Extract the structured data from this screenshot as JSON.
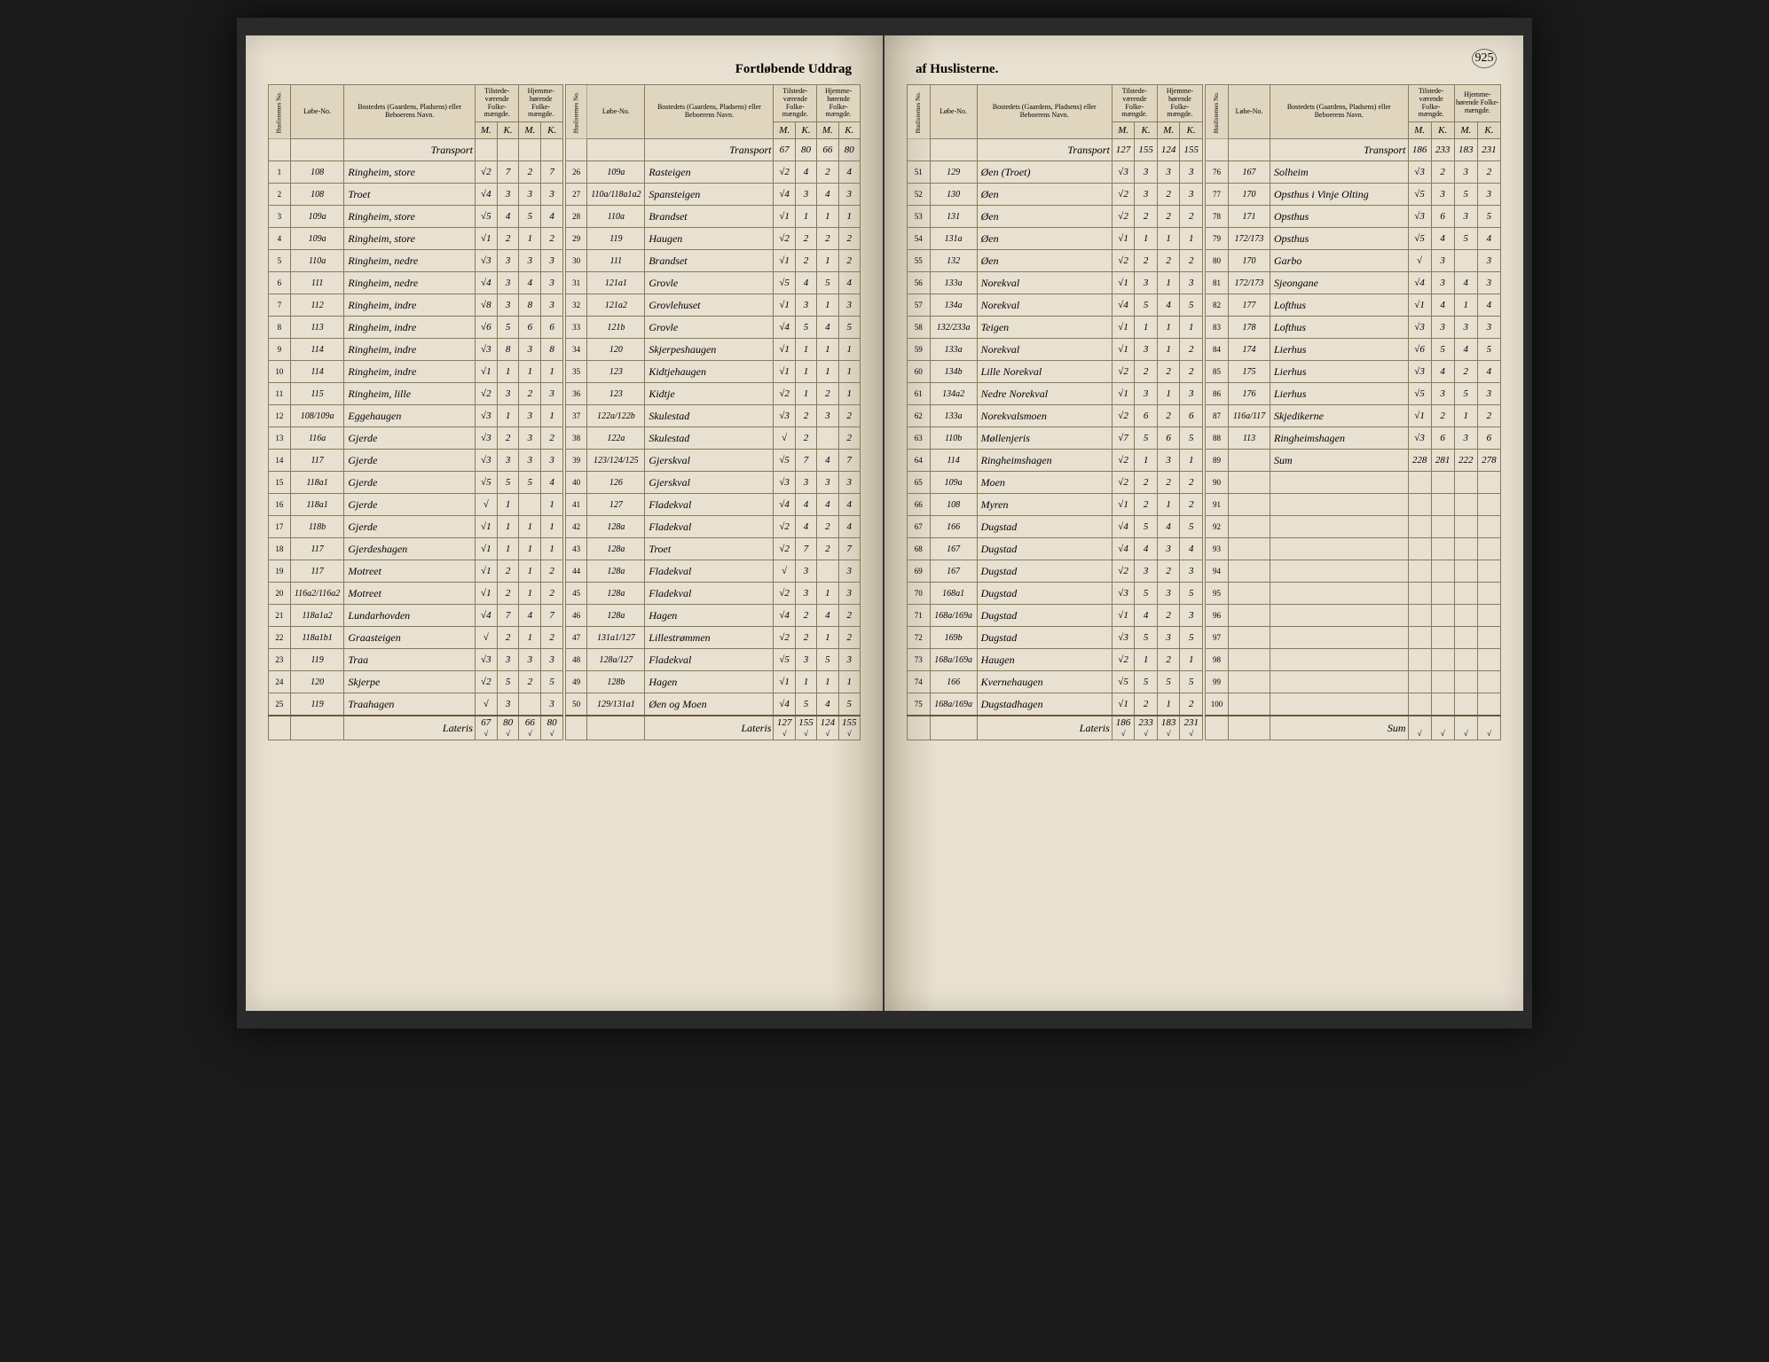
{
  "pageNumber": "925",
  "titleLeft": "Fortløbende Uddrag",
  "titleRight": "af Huslisterne.",
  "headers": {
    "huslisternes": "Huslisternes No.",
    "lobe": "Løbe-No.",
    "bosted": "Bostedets (Gaardens, Pladsens) eller Beboerens Navn.",
    "tilstede": "Tilstede-værende Folke-mængde.",
    "hjemme": "Hjemme-hørende Folke-mængde.",
    "m": "M.",
    "k": "K."
  },
  "transport": "Transport",
  "lateris": "Lateris",
  "sum": "Sum",
  "leftPage": {
    "col1": {
      "transport": [
        "",
        "",
        "",
        ""
      ],
      "rows": [
        {
          "n": "1",
          "lobe": "108",
          "name": "Ringheim, store",
          "m1": "√2",
          "k1": "7",
          "m2": "2",
          "k2": "7"
        },
        {
          "n": "2",
          "lobe": "108",
          "name": "Troet",
          "m1": "√4",
          "k1": "3",
          "m2": "3",
          "k2": "3"
        },
        {
          "n": "3",
          "lobe": "109a",
          "name": "Ringheim, store",
          "m1": "√5",
          "k1": "4",
          "m2": "5",
          "k2": "4"
        },
        {
          "n": "4",
          "lobe": "109a",
          "name": "Ringheim, store",
          "m1": "√1",
          "k1": "2",
          "m2": "1",
          "k2": "2"
        },
        {
          "n": "5",
          "lobe": "110a",
          "name": "Ringheim, nedre",
          "m1": "√3",
          "k1": "3",
          "m2": "3",
          "k2": "3"
        },
        {
          "n": "6",
          "lobe": "111",
          "name": "Ringheim, nedre",
          "m1": "√4",
          "k1": "3",
          "m2": "4",
          "k2": "3"
        },
        {
          "n": "7",
          "lobe": "112",
          "name": "Ringheim, indre",
          "m1": "√8",
          "k1": "3",
          "m2": "8",
          "k2": "3"
        },
        {
          "n": "8",
          "lobe": "113",
          "name": "Ringheim, indre",
          "m1": "√6",
          "k1": "5",
          "m2": "6",
          "k2": "6"
        },
        {
          "n": "9",
          "lobe": "114",
          "name": "Ringheim, indre",
          "m1": "√3",
          "k1": "8",
          "m2": "3",
          "k2": "8"
        },
        {
          "n": "10",
          "lobe": "114",
          "name": "Ringheim, indre",
          "m1": "√1",
          "k1": "1",
          "m2": "1",
          "k2": "1"
        },
        {
          "n": "11",
          "lobe": "115",
          "name": "Ringheim, lille",
          "m1": "√2",
          "k1": "3",
          "m2": "2",
          "k2": "3"
        },
        {
          "n": "12",
          "lobe": "108/109a",
          "name": "Eggehaugen",
          "m1": "√3",
          "k1": "1",
          "m2": "3",
          "k2": "1"
        },
        {
          "n": "13",
          "lobe": "116a",
          "name": "Gjerde",
          "m1": "√3",
          "k1": "2",
          "m2": "3",
          "k2": "2"
        },
        {
          "n": "14",
          "lobe": "117",
          "name": "Gjerde",
          "m1": "√3",
          "k1": "3",
          "m2": "3",
          "k2": "3"
        },
        {
          "n": "15",
          "lobe": "118a1",
          "name": "Gjerde",
          "m1": "√5",
          "k1": "5",
          "m2": "5",
          "k2": "4"
        },
        {
          "n": "16",
          "lobe": "118a1",
          "name": "Gjerde",
          "m1": "√",
          "k1": "1",
          "m2": "",
          "k2": "1"
        },
        {
          "n": "17",
          "lobe": "118b",
          "name": "Gjerde",
          "m1": "√1",
          "k1": "1",
          "m2": "1",
          "k2": "1"
        },
        {
          "n": "18",
          "lobe": "117",
          "name": "Gjerdeshagen",
          "m1": "√1",
          "k1": "1",
          "m2": "1",
          "k2": "1"
        },
        {
          "n": "19",
          "lobe": "117",
          "name": "Motreet",
          "m1": "√1",
          "k1": "2",
          "m2": "1",
          "k2": "2"
        },
        {
          "n": "20",
          "lobe": "116a2/116a2",
          "name": "Motreet",
          "m1": "√1",
          "k1": "2",
          "m2": "1",
          "k2": "2"
        },
        {
          "n": "21",
          "lobe": "118a1a2",
          "name": "Lundarhovden",
          "m1": "√4",
          "k1": "7",
          "m2": "4",
          "k2": "7"
        },
        {
          "n": "22",
          "lobe": "118a1b1",
          "name": "Graasteigen",
          "m1": "√",
          "k1": "2",
          "m2": "1",
          "k2": "2"
        },
        {
          "n": "23",
          "lobe": "119",
          "name": "Traa",
          "m1": "√3",
          "k1": "3",
          "m2": "3",
          "k2": "3"
        },
        {
          "n": "24",
          "lobe": "120",
          "name": "Skjerpe",
          "m1": "√2",
          "k1": "5",
          "m2": "2",
          "k2": "5"
        },
        {
          "n": "25",
          "lobe": "119",
          "name": "Traahagen",
          "m1": "√",
          "k1": "3",
          "m2": "",
          "k2": "3"
        }
      ],
      "lateris": [
        "67",
        "80",
        "66",
        "80"
      ]
    },
    "col2": {
      "transport": [
        "67",
        "80",
        "66",
        "80"
      ],
      "rows": [
        {
          "n": "26",
          "lobe": "109a",
          "name": "Rasteigen",
          "m1": "√2",
          "k1": "4",
          "m2": "2",
          "k2": "4"
        },
        {
          "n": "27",
          "lobe": "110a/118a1a2",
          "name": "Spansteigen",
          "m1": "√4",
          "k1": "3",
          "m2": "4",
          "k2": "3"
        },
        {
          "n": "28",
          "lobe": "110a",
          "name": "Brandset",
          "m1": "√1",
          "k1": "1",
          "m2": "1",
          "k2": "1"
        },
        {
          "n": "29",
          "lobe": "119",
          "name": "Haugen",
          "m1": "√2",
          "k1": "2",
          "m2": "2",
          "k2": "2"
        },
        {
          "n": "30",
          "lobe": "111",
          "name": "Brandset",
          "m1": "√1",
          "k1": "2",
          "m2": "1",
          "k2": "2"
        },
        {
          "n": "31",
          "lobe": "121a1",
          "name": "Grovle",
          "m1": "√5",
          "k1": "4",
          "m2": "5",
          "k2": "4"
        },
        {
          "n": "32",
          "lobe": "121a2",
          "name": "Grovlehuset",
          "m1": "√1",
          "k1": "3",
          "m2": "1",
          "k2": "3"
        },
        {
          "n": "33",
          "lobe": "121b",
          "name": "Grovle",
          "m1": "√4",
          "k1": "5",
          "m2": "4",
          "k2": "5"
        },
        {
          "n": "34",
          "lobe": "120",
          "name": "Skjerpeshaugen",
          "m1": "√1",
          "k1": "1",
          "m2": "1",
          "k2": "1"
        },
        {
          "n": "35",
          "lobe": "123",
          "name": "Kidtjehaugen",
          "m1": "√1",
          "k1": "1",
          "m2": "1",
          "k2": "1"
        },
        {
          "n": "36",
          "lobe": "123",
          "name": "Kidtje",
          "m1": "√2",
          "k1": "1",
          "m2": "2",
          "k2": "1"
        },
        {
          "n": "37",
          "lobe": "122a/122b",
          "name": "Skulestad",
          "m1": "√3",
          "k1": "2",
          "m2": "3",
          "k2": "2"
        },
        {
          "n": "38",
          "lobe": "122a",
          "name": "Skulestad",
          "m1": "√",
          "k1": "2",
          "m2": "",
          "k2": "2"
        },
        {
          "n": "39",
          "lobe": "123/124/125",
          "name": "Gjerskval",
          "m1": "√5",
          "k1": "7",
          "m2": "4",
          "k2": "7"
        },
        {
          "n": "40",
          "lobe": "126",
          "name": "Gjerskval",
          "m1": "√3",
          "k1": "3",
          "m2": "3",
          "k2": "3"
        },
        {
          "n": "41",
          "lobe": "127",
          "name": "Fladekval",
          "m1": "√4",
          "k1": "4",
          "m2": "4",
          "k2": "4"
        },
        {
          "n": "42",
          "lobe": "128a",
          "name": "Fladekval",
          "m1": "√2",
          "k1": "4",
          "m2": "2",
          "k2": "4"
        },
        {
          "n": "43",
          "lobe": "128a",
          "name": "Troet",
          "m1": "√2",
          "k1": "7",
          "m2": "2",
          "k2": "7"
        },
        {
          "n": "44",
          "lobe": "128a",
          "name": "Fladekval",
          "m1": "√",
          "k1": "3",
          "m2": "",
          "k2": "3"
        },
        {
          "n": "45",
          "lobe": "128a",
          "name": "Fladekval",
          "m1": "√2",
          "k1": "3",
          "m2": "1",
          "k2": "3"
        },
        {
          "n": "46",
          "lobe": "128a",
          "name": "Hagen",
          "m1": "√4",
          "k1": "2",
          "m2": "4",
          "k2": "2"
        },
        {
          "n": "47",
          "lobe": "131a1/127",
          "name": "Lillestrømmen",
          "m1": "√2",
          "k1": "2",
          "m2": "1",
          "k2": "2"
        },
        {
          "n": "48",
          "lobe": "128a/127",
          "name": "Fladekval",
          "m1": "√5",
          "k1": "3",
          "m2": "5",
          "k2": "3"
        },
        {
          "n": "49",
          "lobe": "128b",
          "name": "Hagen",
          "m1": "√1",
          "k1": "1",
          "m2": "1",
          "k2": "1"
        },
        {
          "n": "50",
          "lobe": "129/131a1",
          "name": "Øen og Moen",
          "m1": "√4",
          "k1": "5",
          "m2": "4",
          "k2": "5"
        }
      ],
      "lateris": [
        "127",
        "155",
        "124",
        "155"
      ]
    }
  },
  "rightPage": {
    "col1": {
      "transport": [
        "127",
        "155",
        "124",
        "155"
      ],
      "rows": [
        {
          "n": "51",
          "lobe": "129",
          "name": "Øen (Troet)",
          "m1": "√3",
          "k1": "3",
          "m2": "3",
          "k2": "3"
        },
        {
          "n": "52",
          "lobe": "130",
          "name": "Øen",
          "m1": "√2",
          "k1": "3",
          "m2": "2",
          "k2": "3"
        },
        {
          "n": "53",
          "lobe": "131",
          "name": "Øen",
          "m1": "√2",
          "k1": "2",
          "m2": "2",
          "k2": "2"
        },
        {
          "n": "54",
          "lobe": "131a",
          "name": "Øen",
          "m1": "√1",
          "k1": "1",
          "m2": "1",
          "k2": "1"
        },
        {
          "n": "55",
          "lobe": "132",
          "name": "Øen",
          "m1": "√2",
          "k1": "2",
          "m2": "2",
          "k2": "2"
        },
        {
          "n": "56",
          "lobe": "133a",
          "name": "Norekval",
          "m1": "√1",
          "k1": "3",
          "m2": "1",
          "k2": "3"
        },
        {
          "n": "57",
          "lobe": "134a",
          "name": "Norekval",
          "m1": "√4",
          "k1": "5",
          "m2": "4",
          "k2": "5"
        },
        {
          "n": "58",
          "lobe": "132/233a",
          "name": "Teigen",
          "m1": "√1",
          "k1": "1",
          "m2": "1",
          "k2": "1"
        },
        {
          "n": "59",
          "lobe": "133a",
          "name": "Norekval",
          "m1": "√1",
          "k1": "3",
          "m2": "1",
          "k2": "2"
        },
        {
          "n": "60",
          "lobe": "134b",
          "name": "Lille Norekval",
          "m1": "√2",
          "k1": "2",
          "m2": "2",
          "k2": "2"
        },
        {
          "n": "61",
          "lobe": "134a2",
          "name": "Nedre Norekval",
          "m1": "√1",
          "k1": "3",
          "m2": "1",
          "k2": "3"
        },
        {
          "n": "62",
          "lobe": "133a",
          "name": "Norekvalsmoen",
          "m1": "√2",
          "k1": "6",
          "m2": "2",
          "k2": "6"
        },
        {
          "n": "63",
          "lobe": "110b",
          "name": "Møllenjeris",
          "m1": "√7",
          "k1": "5",
          "m2": "6",
          "k2": "5"
        },
        {
          "n": "64",
          "lobe": "114",
          "name": "Ringheimshagen",
          "m1": "√2",
          "k1": "1",
          "m2": "3",
          "k2": "1"
        },
        {
          "n": "65",
          "lobe": "109a",
          "name": "Moen",
          "m1": "√2",
          "k1": "2",
          "m2": "2",
          "k2": "2"
        },
        {
          "n": "66",
          "lobe": "108",
          "name": "Myren",
          "m1": "√1",
          "k1": "2",
          "m2": "1",
          "k2": "2"
        },
        {
          "n": "67",
          "lobe": "166",
          "name": "Dugstad",
          "m1": "√4",
          "k1": "5",
          "m2": "4",
          "k2": "5"
        },
        {
          "n": "68",
          "lobe": "167",
          "name": "Dugstad",
          "m1": "√4",
          "k1": "4",
          "m2": "3",
          "k2": "4"
        },
        {
          "n": "69",
          "lobe": "167",
          "name": "Dugstad",
          "m1": "√2",
          "k1": "3",
          "m2": "2",
          "k2": "3"
        },
        {
          "n": "70",
          "lobe": "168a1",
          "name": "Dugstad",
          "m1": "√3",
          "k1": "5",
          "m2": "3",
          "k2": "5"
        },
        {
          "n": "71",
          "lobe": "168a/169a",
          "name": "Dugstad",
          "m1": "√1",
          "k1": "4",
          "m2": "2",
          "k2": "3"
        },
        {
          "n": "72",
          "lobe": "169b",
          "name": "Dugstad",
          "m1": "√3",
          "k1": "5",
          "m2": "3",
          "k2": "5"
        },
        {
          "n": "73",
          "lobe": "168a/169a",
          "name": "Haugen",
          "m1": "√2",
          "k1": "1",
          "m2": "2",
          "k2": "1"
        },
        {
          "n": "74",
          "lobe": "166",
          "name": "Kvernehaugen",
          "m1": "√5",
          "k1": "5",
          "m2": "5",
          "k2": "5"
        },
        {
          "n": "75",
          "lobe": "168a/169a",
          "name": "Dugstadhagen",
          "m1": "√1",
          "k1": "2",
          "m2": "1",
          "k2": "2"
        }
      ],
      "lateris": [
        "186",
        "233",
        "183",
        "231"
      ]
    },
    "col2": {
      "transport": [
        "186",
        "233",
        "183",
        "231"
      ],
      "rows": [
        {
          "n": "76",
          "lobe": "167",
          "name": "Solheim",
          "m1": "√3",
          "k1": "2",
          "m2": "3",
          "k2": "2"
        },
        {
          "n": "77",
          "lobe": "170",
          "name": "Opsthus i Vinje Olting",
          "m1": "√5",
          "k1": "3",
          "m2": "5",
          "k2": "3"
        },
        {
          "n": "78",
          "lobe": "171",
          "name": "Opsthus",
          "m1": "√3",
          "k1": "6",
          "m2": "3",
          "k2": "5"
        },
        {
          "n": "79",
          "lobe": "172/173",
          "name": "Opsthus",
          "m1": "√5",
          "k1": "4",
          "m2": "5",
          "k2": "4"
        },
        {
          "n": "80",
          "lobe": "170",
          "name": "Garbo",
          "m1": "√",
          "k1": "3",
          "m2": "",
          "k2": "3"
        },
        {
          "n": "81",
          "lobe": "172/173",
          "name": "Sjeongane",
          "m1": "√4",
          "k1": "3",
          "m2": "4",
          "k2": "3"
        },
        {
          "n": "82",
          "lobe": "177",
          "name": "Lofthus",
          "m1": "√1",
          "k1": "4",
          "m2": "1",
          "k2": "4"
        },
        {
          "n": "83",
          "lobe": "178",
          "name": "Lofthus",
          "m1": "√3",
          "k1": "3",
          "m2": "3",
          "k2": "3"
        },
        {
          "n": "84",
          "lobe": "174",
          "name": "Lierhus",
          "m1": "√6",
          "k1": "5",
          "m2": "4",
          "k2": "5"
        },
        {
          "n": "85",
          "lobe": "175",
          "name": "Lierhus",
          "m1": "√3",
          "k1": "4",
          "m2": "2",
          "k2": "4"
        },
        {
          "n": "86",
          "lobe": "176",
          "name": "Lierhus",
          "m1": "√5",
          "k1": "3",
          "m2": "5",
          "k2": "3"
        },
        {
          "n": "87",
          "lobe": "116a/117",
          "name": "Skjedikerne",
          "m1": "√1",
          "k1": "2",
          "m2": "1",
          "k2": "2"
        },
        {
          "n": "88",
          "lobe": "113",
          "name": "Ringheimshagen",
          "m1": "√3",
          "k1": "6",
          "m2": "3",
          "k2": "6"
        },
        {
          "n": "89",
          "lobe": "",
          "name": "Sum",
          "m1": "228",
          "k1": "281",
          "m2": "222",
          "k2": "278"
        },
        {
          "n": "90",
          "lobe": "",
          "name": "",
          "m1": "",
          "k1": "",
          "m2": "",
          "k2": ""
        },
        {
          "n": "91",
          "lobe": "",
          "name": "",
          "m1": "",
          "k1": "",
          "m2": "",
          "k2": ""
        },
        {
          "n": "92",
          "lobe": "",
          "name": "",
          "m1": "",
          "k1": "",
          "m2": "",
          "k2": ""
        },
        {
          "n": "93",
          "lobe": "",
          "name": "",
          "m1": "",
          "k1": "",
          "m2": "",
          "k2": ""
        },
        {
          "n": "94",
          "lobe": "",
          "name": "",
          "m1": "",
          "k1": "",
          "m2": "",
          "k2": ""
        },
        {
          "n": "95",
          "lobe": "",
          "name": "",
          "m1": "",
          "k1": "",
          "m2": "",
          "k2": ""
        },
        {
          "n": "96",
          "lobe": "",
          "name": "",
          "m1": "",
          "k1": "",
          "m2": "",
          "k2": ""
        },
        {
          "n": "97",
          "lobe": "",
          "name": "",
          "m1": "",
          "k1": "",
          "m2": "",
          "k2": ""
        },
        {
          "n": "98",
          "lobe": "",
          "name": "",
          "m1": "",
          "k1": "",
          "m2": "",
          "k2": ""
        },
        {
          "n": "99",
          "lobe": "",
          "name": "",
          "m1": "",
          "k1": "",
          "m2": "",
          "k2": ""
        },
        {
          "n": "100",
          "lobe": "",
          "name": "",
          "m1": "",
          "k1": "",
          "m2": "",
          "k2": ""
        }
      ],
      "lateris": [
        "",
        "",
        "",
        ""
      ]
    }
  }
}
